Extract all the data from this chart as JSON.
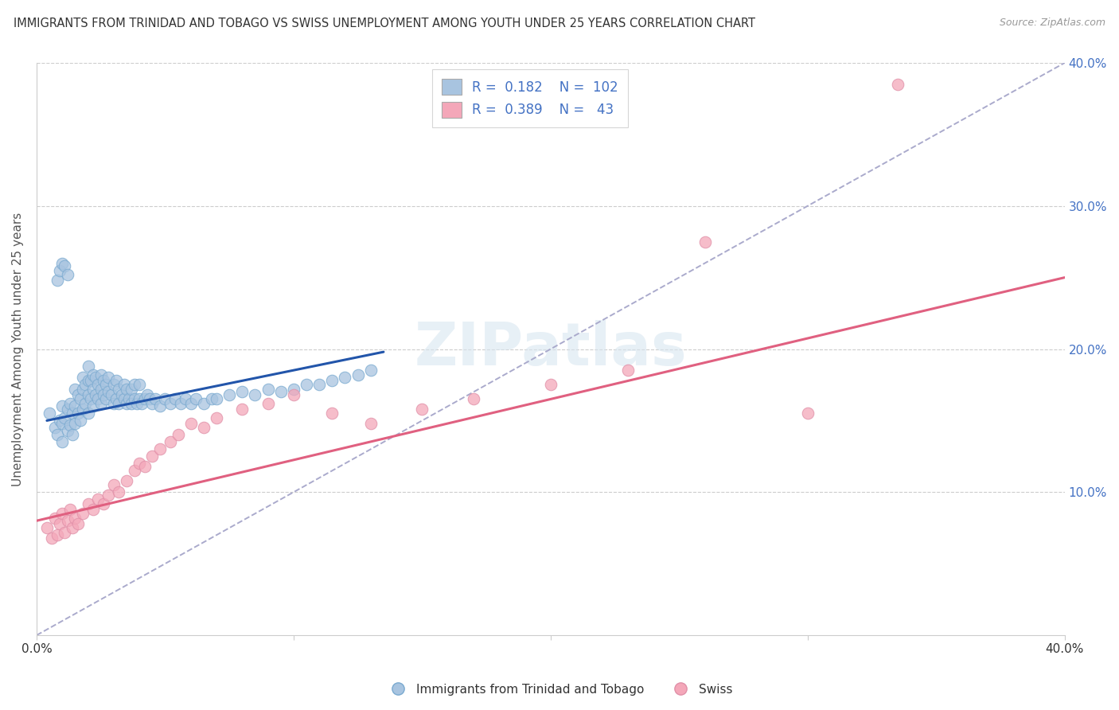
{
  "title": "IMMIGRANTS FROM TRINIDAD AND TOBAGO VS SWISS UNEMPLOYMENT AMONG YOUTH UNDER 25 YEARS CORRELATION CHART",
  "source": "Source: ZipAtlas.com",
  "ylabel": "Unemployment Among Youth under 25 years",
  "xlim": [
    0.0,
    0.4
  ],
  "ylim": [
    0.0,
    0.4
  ],
  "xticks": [
    0.0,
    0.1,
    0.2,
    0.3,
    0.4
  ],
  "yticks": [
    0.0,
    0.1,
    0.2,
    0.3,
    0.4
  ],
  "xticklabels": [
    "0.0%",
    "10.0%",
    "20.0%",
    "30.0%",
    "40.0%"
  ],
  "yticklabels_right": [
    "",
    "10.0%",
    "20.0%",
    "30.0%",
    "40.0%"
  ],
  "blue_color": "#a8c4e0",
  "pink_color": "#f4a7b9",
  "blue_line_color": "#2255AA",
  "pink_line_color": "#E06080",
  "dashed_line_color": "#aaaacc",
  "legend_r1": "R =  0.182",
  "legend_n1": "N =  102",
  "legend_r2": "R =  0.389",
  "legend_n2": "N =   43",
  "label1": "Immigrants from Trinidad and Tobago",
  "label2": "Swiss",
  "watermark": "ZIPatlas",
  "blue_scatter_x": [
    0.005,
    0.007,
    0.008,
    0.009,
    0.01,
    0.01,
    0.01,
    0.011,
    0.012,
    0.012,
    0.013,
    0.013,
    0.014,
    0.014,
    0.015,
    0.015,
    0.015,
    0.016,
    0.016,
    0.017,
    0.017,
    0.018,
    0.018,
    0.018,
    0.019,
    0.019,
    0.02,
    0.02,
    0.02,
    0.02,
    0.021,
    0.021,
    0.022,
    0.022,
    0.022,
    0.023,
    0.023,
    0.024,
    0.024,
    0.025,
    0.025,
    0.025,
    0.026,
    0.026,
    0.027,
    0.027,
    0.028,
    0.028,
    0.029,
    0.03,
    0.03,
    0.031,
    0.031,
    0.032,
    0.032,
    0.033,
    0.034,
    0.034,
    0.035,
    0.035,
    0.036,
    0.037,
    0.037,
    0.038,
    0.038,
    0.039,
    0.04,
    0.04,
    0.041,
    0.042,
    0.043,
    0.044,
    0.045,
    0.046,
    0.048,
    0.05,
    0.052,
    0.054,
    0.056,
    0.058,
    0.06,
    0.062,
    0.065,
    0.068,
    0.07,
    0.075,
    0.08,
    0.085,
    0.09,
    0.095,
    0.1,
    0.105,
    0.11,
    0.115,
    0.12,
    0.125,
    0.13,
    0.008,
    0.009,
    0.01,
    0.011,
    0.012
  ],
  "blue_scatter_y": [
    0.155,
    0.145,
    0.14,
    0.15,
    0.135,
    0.148,
    0.16,
    0.152,
    0.143,
    0.158,
    0.147,
    0.162,
    0.14,
    0.155,
    0.148,
    0.16,
    0.172,
    0.155,
    0.168,
    0.15,
    0.165,
    0.158,
    0.172,
    0.18,
    0.162,
    0.175,
    0.155,
    0.168,
    0.178,
    0.188,
    0.165,
    0.178,
    0.16,
    0.172,
    0.182,
    0.168,
    0.18,
    0.165,
    0.175,
    0.162,
    0.172,
    0.182,
    0.168,
    0.178,
    0.165,
    0.175,
    0.17,
    0.18,
    0.168,
    0.162,
    0.175,
    0.165,
    0.178,
    0.162,
    0.172,
    0.168,
    0.165,
    0.175,
    0.162,
    0.172,
    0.165,
    0.162,
    0.172,
    0.165,
    0.175,
    0.162,
    0.165,
    0.175,
    0.162,
    0.165,
    0.168,
    0.165,
    0.162,
    0.165,
    0.16,
    0.165,
    0.162,
    0.165,
    0.162,
    0.165,
    0.162,
    0.165,
    0.162,
    0.165,
    0.165,
    0.168,
    0.17,
    0.168,
    0.172,
    0.17,
    0.172,
    0.175,
    0.175,
    0.178,
    0.18,
    0.182,
    0.185,
    0.248,
    0.255,
    0.26,
    0.258,
    0.252
  ],
  "pink_scatter_x": [
    0.004,
    0.006,
    0.007,
    0.008,
    0.009,
    0.01,
    0.011,
    0.012,
    0.013,
    0.014,
    0.015,
    0.016,
    0.018,
    0.02,
    0.022,
    0.024,
    0.026,
    0.028,
    0.03,
    0.032,
    0.035,
    0.038,
    0.04,
    0.042,
    0.045,
    0.048,
    0.052,
    0.055,
    0.06,
    0.065,
    0.07,
    0.08,
    0.09,
    0.1,
    0.115,
    0.13,
    0.15,
    0.17,
    0.2,
    0.23,
    0.26,
    0.3,
    0.335
  ],
  "pink_scatter_y": [
    0.075,
    0.068,
    0.082,
    0.07,
    0.078,
    0.085,
    0.072,
    0.08,
    0.088,
    0.075,
    0.082,
    0.078,
    0.085,
    0.092,
    0.088,
    0.095,
    0.092,
    0.098,
    0.105,
    0.1,
    0.108,
    0.115,
    0.12,
    0.118,
    0.125,
    0.13,
    0.135,
    0.14,
    0.148,
    0.145,
    0.152,
    0.158,
    0.162,
    0.168,
    0.155,
    0.148,
    0.158,
    0.165,
    0.175,
    0.185,
    0.275,
    0.155,
    0.385
  ],
  "blue_trend_x": [
    0.004,
    0.135
  ],
  "blue_trend_y": [
    0.15,
    0.198
  ],
  "pink_trend_x": [
    0.0,
    0.4
  ],
  "pink_trend_y": [
    0.08,
    0.25
  ]
}
